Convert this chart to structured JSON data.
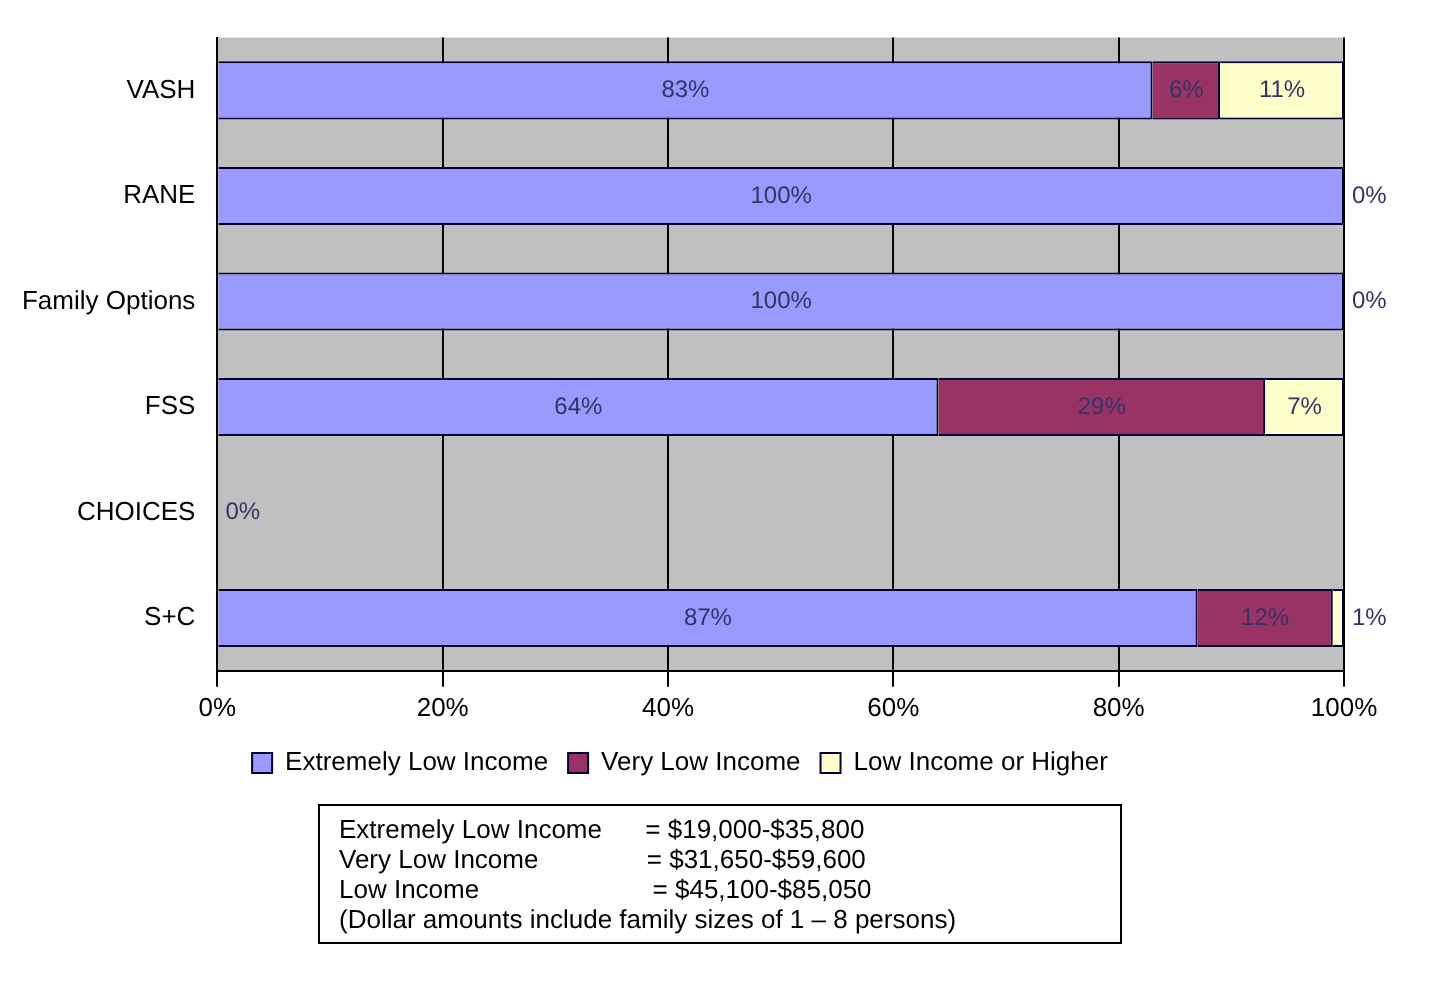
{
  "chart_data": {
    "type": "bar",
    "orientation": "horizontal",
    "stacked": true,
    "categories": [
      "VASH",
      "RANE",
      "Family Options",
      "FSS",
      "CHOICES",
      "S+C"
    ],
    "series": [
      {
        "name": "Extremely Low Income",
        "color": "#9999ff",
        "values": [
          83,
          100,
          100,
          64,
          0,
          87
        ],
        "value_labels": [
          "83%",
          "100%",
          "100%",
          "64%",
          "0%",
          "87%"
        ]
      },
      {
        "name": "Very Low Income",
        "color": "#993366",
        "values": [
          6,
          0,
          0,
          29,
          0,
          12
        ],
        "value_labels": [
          "6%",
          "0%",
          "0%",
          "29%",
          null,
          "12%"
        ]
      },
      {
        "name": "Low Income or Higher",
        "color": "#ffffcc",
        "values": [
          11,
          0,
          0,
          7,
          0,
          1
        ],
        "value_labels": [
          "11%",
          null,
          null,
          "7%",
          null,
          "1%"
        ]
      }
    ],
    "xlim": [
      0,
      100
    ],
    "xticks": [
      {
        "value": 0,
        "label": "0%"
      },
      {
        "value": 20,
        "label": "20%"
      },
      {
        "value": 40,
        "label": "40%"
      },
      {
        "value": 60,
        "label": "60%"
      },
      {
        "value": 80,
        "label": "80%"
      },
      {
        "value": 100,
        "label": "100%"
      }
    ],
    "grid": "x",
    "legend": "bottom",
    "annotations": [
      "Extremely Low Income      = $19,000-$35,800",
      "Very Low Income               = $31,650-$59,600",
      "Low Income                        = $45,100-$85,050",
      "(Dollar amounts include family sizes of 1 – 8 persons)"
    ]
  }
}
